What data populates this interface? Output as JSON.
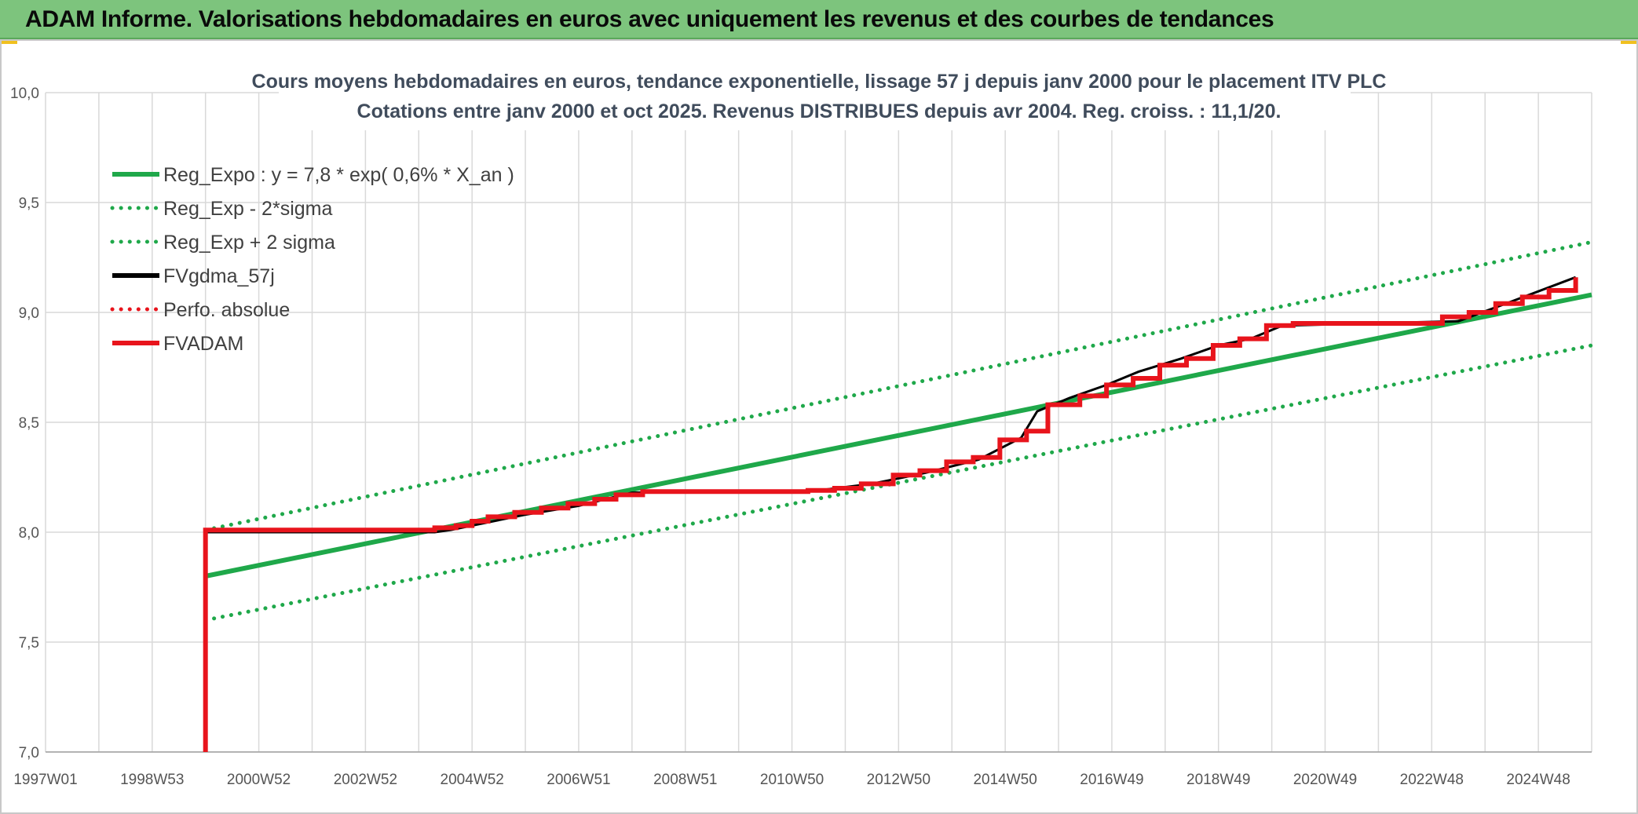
{
  "banner": {
    "title": "ADAM Informe. Valorisations hebdomadaires en euros avec uniquement les revenus et des courbes de tendances"
  },
  "colors": {
    "banner": "#7dc47d",
    "trend": "#1fa84a",
    "fvgdma": "#000000",
    "fvadam": "#e8141c",
    "perfo": "#e8141c",
    "grid": "#d9d9d9"
  },
  "chart_data": {
    "type": "line",
    "title": [
      "Cours moyens hebdomadaires en euros, tendance exponentielle, lissage 57 j depuis janv 2000 pour le placement ITV PLC",
      "Cotations entre janv 2000 et oct 2025. Revenus DISTRIBUES depuis avr 2004. Reg. croiss. : 11,1/20."
    ],
    "xlabel": "",
    "ylabel": "",
    "ylim": [
      7.0,
      10.0
    ],
    "xlim": [
      1997.0,
      2026.0
    ],
    "y_ticks": [
      "7,0",
      "7,5",
      "8,0",
      "8,5",
      "9,0",
      "9,5",
      "10,0"
    ],
    "x_ticks": [
      "1997W01",
      "1998W53",
      "2000W52",
      "2002W52",
      "2004W52",
      "2006W51",
      "2008W51",
      "2010W50",
      "2012W50",
      "2014W50",
      "2016W49",
      "2018W49",
      "2020W49",
      "2022W48",
      "2024W48"
    ],
    "grid": true,
    "legend_position": "top-left",
    "series": [
      {
        "name": "Reg_Expo : y = 7,8 * exp( 0,6% *  X_an )",
        "style": "solid-thick",
        "color": "#1fa84a",
        "x": [
          2000.0,
          2026.0
        ],
        "y": [
          7.8,
          9.08
        ]
      },
      {
        "name": "Reg_Exp - 2*sigma",
        "style": "dotted",
        "color": "#1fa84a",
        "x": [
          2000.0,
          2026.0
        ],
        "y": [
          7.6,
          8.85
        ]
      },
      {
        "name": "Reg_Exp + 2 sigma",
        "style": "dotted",
        "color": "#1fa84a",
        "x": [
          2000.0,
          2026.0
        ],
        "y": [
          8.01,
          9.32
        ]
      },
      {
        "name": "FVgdma_57j",
        "style": "solid",
        "color": "#000000",
        "x": [
          2000.0,
          2000.01,
          2004.3,
          2004.6,
          2005.2,
          2006.0,
          2007.0,
          2008.0,
          2011.5,
          2012.5,
          2013.5,
          2014.5,
          2015.3,
          2015.6,
          2016.2,
          2016.9,
          2017.5,
          2018.3,
          2019.0,
          2019.6,
          2020.2,
          2023.5,
          2024.5,
          2025.7
        ],
        "y": [
          7.0,
          8.0,
          8.0,
          8.01,
          8.04,
          8.08,
          8.12,
          8.18,
          8.19,
          8.22,
          8.27,
          8.33,
          8.43,
          8.55,
          8.61,
          8.67,
          8.73,
          8.79,
          8.85,
          8.88,
          8.94,
          8.96,
          9.05,
          9.16
        ]
      },
      {
        "name": "Perfo. absolue",
        "style": "dotted",
        "color": "#e8141c",
        "x": [],
        "y": []
      },
      {
        "name": "FVADAM",
        "style": "step-thick",
        "color": "#e8141c",
        "x": [
          2000.0,
          2000.0,
          2004.1,
          2004.3,
          2004.7,
          2005.0,
          2005.3,
          2005.8,
          2006.3,
          2006.8,
          2007.3,
          2007.7,
          2008.2,
          2011.3,
          2011.8,
          2012.3,
          2012.9,
          2013.4,
          2013.9,
          2014.4,
          2014.9,
          2015.4,
          2015.8,
          2016.4,
          2016.9,
          2017.4,
          2017.9,
          2018.4,
          2018.9,
          2019.4,
          2019.9,
          2020.4,
          2023.2,
          2023.7,
          2024.2,
          2024.7,
          2025.2,
          2025.7
        ],
        "y": [
          7.0,
          8.01,
          8.01,
          8.02,
          8.03,
          8.05,
          8.07,
          8.09,
          8.11,
          8.13,
          8.15,
          8.17,
          8.185,
          8.19,
          8.2,
          8.22,
          8.26,
          8.28,
          8.32,
          8.34,
          8.42,
          8.46,
          8.58,
          8.62,
          8.67,
          8.7,
          8.76,
          8.79,
          8.85,
          8.88,
          8.94,
          8.95,
          8.98,
          9.0,
          9.04,
          9.07,
          9.1,
          9.16
        ]
      }
    ]
  }
}
